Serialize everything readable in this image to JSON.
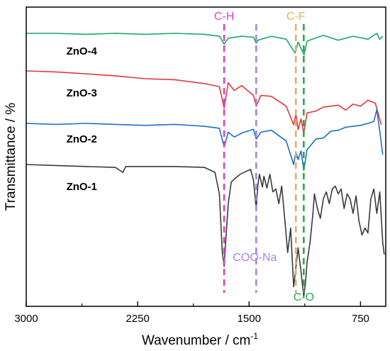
{
  "chart_data": {
    "type": "line",
    "xlabel": "Wavenumber / cm",
    "xlabel_superscript": "-1",
    "ylabel": "Transmittance / %",
    "xlim": [
      3000,
      580
    ],
    "x_reversed": true,
    "xticks": [
      3000,
      2250,
      1500,
      750
    ],
    "y_ticks_labeled": false,
    "grid": false,
    "series": [
      {
        "name": "ZnO-4",
        "color": "#1aa865",
        "label_x": 2730,
        "points": [
          [
            3000,
            0.0
          ],
          [
            2800,
            0.0
          ],
          [
            2600,
            0.1
          ],
          [
            2400,
            0.0
          ],
          [
            2200,
            0.1
          ],
          [
            2000,
            0.0
          ],
          [
            1800,
            0.1
          ],
          [
            1700,
            0.3
          ],
          [
            1668,
            1.1
          ],
          [
            1640,
            0.5
          ],
          [
            1550,
            0.3
          ],
          [
            1470,
            0.4
          ],
          [
            1452,
            1.0
          ],
          [
            1440,
            0.7
          ],
          [
            1350,
            0.3
          ],
          [
            1250,
            0.6
          ],
          [
            1190,
            2.0
          ],
          [
            1170,
            0.9
          ],
          [
            1130,
            2.2
          ],
          [
            1110,
            0.8
          ],
          [
            1000,
            0.2
          ],
          [
            900,
            0.7
          ],
          [
            800,
            0.3
          ],
          [
            700,
            0.6
          ],
          [
            640,
            0.0
          ],
          [
            620,
            0.6
          ],
          [
            600,
            0.3
          ]
        ]
      },
      {
        "name": "ZnO-3",
        "color": "#e2383c",
        "label_x": 2730,
        "points": [
          [
            3000,
            0.0
          ],
          [
            2800,
            0.1
          ],
          [
            2600,
            0.3
          ],
          [
            2400,
            0.5
          ],
          [
            2200,
            0.8
          ],
          [
            2000,
            0.9
          ],
          [
            1800,
            1.3
          ],
          [
            1700,
            1.6
          ],
          [
            1668,
            3.8
          ],
          [
            1640,
            1.2
          ],
          [
            1600,
            2.0
          ],
          [
            1550,
            1.5
          ],
          [
            1470,
            2.5
          ],
          [
            1452,
            3.6
          ],
          [
            1420,
            2.5
          ],
          [
            1350,
            2.6
          ],
          [
            1250,
            3.6
          ],
          [
            1200,
            5.5
          ],
          [
            1185,
            4.4
          ],
          [
            1170,
            6.0
          ],
          [
            1150,
            4.9
          ],
          [
            1132,
            6.4
          ],
          [
            1110,
            4.3
          ],
          [
            1050,
            4.1
          ],
          [
            1000,
            3.7
          ],
          [
            950,
            3.6
          ],
          [
            900,
            3.5
          ],
          [
            850,
            4.0
          ],
          [
            800,
            3.4
          ],
          [
            750,
            3.6
          ],
          [
            700,
            3.0
          ],
          [
            650,
            3.3
          ],
          [
            610,
            5.5
          ]
        ]
      },
      {
        "name": "ZnO-2",
        "color": "#1c6fc9",
        "label_x": 2730,
        "points": [
          [
            3000,
            0.0
          ],
          [
            2800,
            0.1
          ],
          [
            2600,
            0.0
          ],
          [
            2400,
            0.1
          ],
          [
            2200,
            0.2
          ],
          [
            2000,
            0.1
          ],
          [
            1800,
            0.3
          ],
          [
            1700,
            0.5
          ],
          [
            1668,
            2.4
          ],
          [
            1640,
            0.9
          ],
          [
            1600,
            1.4
          ],
          [
            1550,
            1.0
          ],
          [
            1470,
            0.6
          ],
          [
            1452,
            1.6
          ],
          [
            1420,
            0.9
          ],
          [
            1350,
            0.7
          ],
          [
            1250,
            1.8
          ],
          [
            1200,
            4.2
          ],
          [
            1185,
            2.9
          ],
          [
            1170,
            3.7
          ],
          [
            1150,
            2.8
          ],
          [
            1132,
            4.8
          ],
          [
            1110,
            2.7
          ],
          [
            1050,
            1.6
          ],
          [
            1000,
            1.5
          ],
          [
            950,
            0.8
          ],
          [
            900,
            0.7
          ],
          [
            850,
            0.4
          ],
          [
            800,
            0.3
          ],
          [
            750,
            0.2
          ],
          [
            700,
            0.0
          ],
          [
            660,
            -0.2
          ],
          [
            640,
            -1.4
          ],
          [
            620,
            0.8
          ],
          [
            600,
            3.2
          ]
        ]
      },
      {
        "name": "ZnO-1",
        "color": "#3a3a3a",
        "label_x": 2730,
        "points": [
          [
            3000,
            0.0
          ],
          [
            2800,
            0.1
          ],
          [
            2600,
            0.2
          ],
          [
            2400,
            0.3
          ],
          [
            2350,
            0.8
          ],
          [
            2330,
            0.2
          ],
          [
            2200,
            0.2
          ],
          [
            2000,
            0.2
          ],
          [
            1800,
            0.3
          ],
          [
            1730,
            0.8
          ],
          [
            1700,
            3.0
          ],
          [
            1680,
            9.0
          ],
          [
            1668,
            10.4
          ],
          [
            1660,
            8.5
          ],
          [
            1640,
            4.0
          ],
          [
            1620,
            1.8
          ],
          [
            1600,
            1.5
          ],
          [
            1560,
            1.0
          ],
          [
            1520,
            0.7
          ],
          [
            1490,
            0.5
          ],
          [
            1470,
            1.6
          ],
          [
            1452,
            4.5
          ],
          [
            1440,
            2.0
          ],
          [
            1430,
            1.0
          ],
          [
            1410,
            2.3
          ],
          [
            1400,
            1.2
          ],
          [
            1380,
            2.4
          ],
          [
            1360,
            1.0
          ],
          [
            1340,
            2.8
          ],
          [
            1320,
            2.5
          ],
          [
            1300,
            4.0
          ],
          [
            1280,
            2.2
          ],
          [
            1260,
            5.5
          ],
          [
            1240,
            9.0
          ],
          [
            1220,
            6.5
          ],
          [
            1200,
            12.5
          ],
          [
            1185,
            10.5
          ],
          [
            1170,
            8.5
          ],
          [
            1150,
            11.0
          ],
          [
            1132,
            13.5
          ],
          [
            1120,
            12.0
          ],
          [
            1110,
            10.0
          ],
          [
            1090,
            8.0
          ],
          [
            1070,
            5.0
          ],
          [
            1060,
            3.0
          ],
          [
            1040,
            4.5
          ],
          [
            1020,
            5.5
          ],
          [
            1000,
            3.5
          ],
          [
            980,
            2.8
          ],
          [
            960,
            4.0
          ],
          [
            940,
            2.5
          ],
          [
            920,
            2.2
          ],
          [
            900,
            3.0
          ],
          [
            880,
            2.5
          ],
          [
            860,
            4.5
          ],
          [
            840,
            3.0
          ],
          [
            820,
            3.5
          ],
          [
            800,
            5.0
          ],
          [
            780,
            3.2
          ],
          [
            760,
            5.8
          ],
          [
            740,
            7.2
          ],
          [
            720,
            6.5
          ],
          [
            700,
            7.0
          ],
          [
            680,
            3.5
          ],
          [
            660,
            2.5
          ],
          [
            640,
            5.0
          ],
          [
            620,
            2.8
          ],
          [
            600,
            8.0
          ],
          [
            590,
            9.2
          ]
        ]
      }
    ],
    "vlines": [
      {
        "x": 1668,
        "color": "#e03fd0",
        "label": "C-H",
        "label_pos": "top"
      },
      {
        "x": 1452,
        "color": "#a586e3",
        "label": "COO-Na",
        "label_pos": "bottom"
      },
      {
        "x": 1185,
        "color": "#f0a868",
        "label": "C-F",
        "label_pos": "top"
      },
      {
        "x": 1132,
        "color": "#2aa845",
        "label": "C-O",
        "label_pos": "bottom"
      }
    ]
  }
}
